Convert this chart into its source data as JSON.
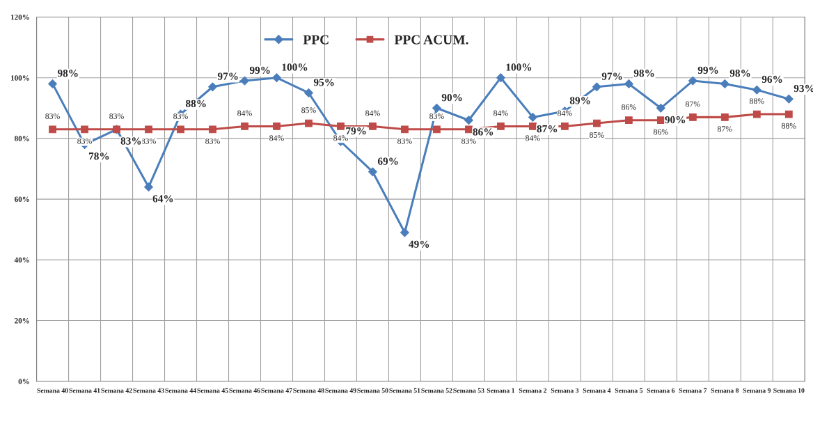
{
  "chart_data": {
    "type": "line",
    "categories": [
      "Semana 40",
      "Semana 41",
      "Semana 42",
      "Semana 43",
      "Semana 44",
      "Semana 45",
      "Semana 46",
      "Semana 47",
      "Semana 48",
      "Semana 49",
      "Semana 50",
      "Semana 51",
      "Semana 52",
      "Semana 53",
      "Semana 1",
      "Semana 2",
      "Semana 3",
      "Semana 4",
      "Semana 5",
      "Semana 6",
      "Semana 7",
      "Semana 8",
      "Semana 9",
      "Semana 10"
    ],
    "series": [
      {
        "name": "PPC",
        "color": "#4a7ebb",
        "marker": "diamond",
        "values": [
          98,
          78,
          83,
          64,
          88,
          97,
          99,
          100,
          95,
          79,
          69,
          49,
          90,
          86,
          100,
          87,
          89,
          97,
          98,
          90,
          99,
          98,
          96,
          93
        ],
        "value_labels": [
          "98%",
          "78%",
          "83%",
          "64%",
          "88%",
          "97%",
          "99%",
          "100%",
          "95%",
          "79%",
          "69%",
          "49%",
          "90%",
          "86%",
          "100%",
          "87%",
          "89%",
          "97%",
          "98%",
          "90%",
          "99%",
          "98%",
          "96%",
          "93%"
        ]
      },
      {
        "name": "PPC ACUM.",
        "color": "#be4b48",
        "marker": "square",
        "values": [
          83,
          83,
          83,
          83,
          83,
          83,
          84,
          84,
          85,
          84,
          84,
          83,
          83,
          83,
          84,
          84,
          84,
          85,
          86,
          86,
          87,
          87,
          88,
          88
        ],
        "value_labels": [
          "83%",
          "83%",
          "83%",
          "83%",
          "83%",
          "83%",
          "84%",
          "84%",
          "85%",
          "84%",
          "84%",
          "83%",
          "83%",
          "83%",
          "84%",
          "84%",
          "84%",
          "85%",
          "86%",
          "86%",
          "87%",
          "87%",
          "88%",
          "88%"
        ]
      }
    ],
    "ylim": [
      0,
      120
    ],
    "yticks": [
      {
        "value": 0,
        "label": "0%"
      },
      {
        "value": 20,
        "label": "20%"
      },
      {
        "value": 40,
        "label": "40%"
      },
      {
        "value": 60,
        "label": "60%"
      },
      {
        "value": 80,
        "label": "80%"
      },
      {
        "value": 100,
        "label": "100%"
      },
      {
        "value": 120,
        "label": "120%"
      }
    ],
    "grid": true,
    "legend": "top"
  }
}
